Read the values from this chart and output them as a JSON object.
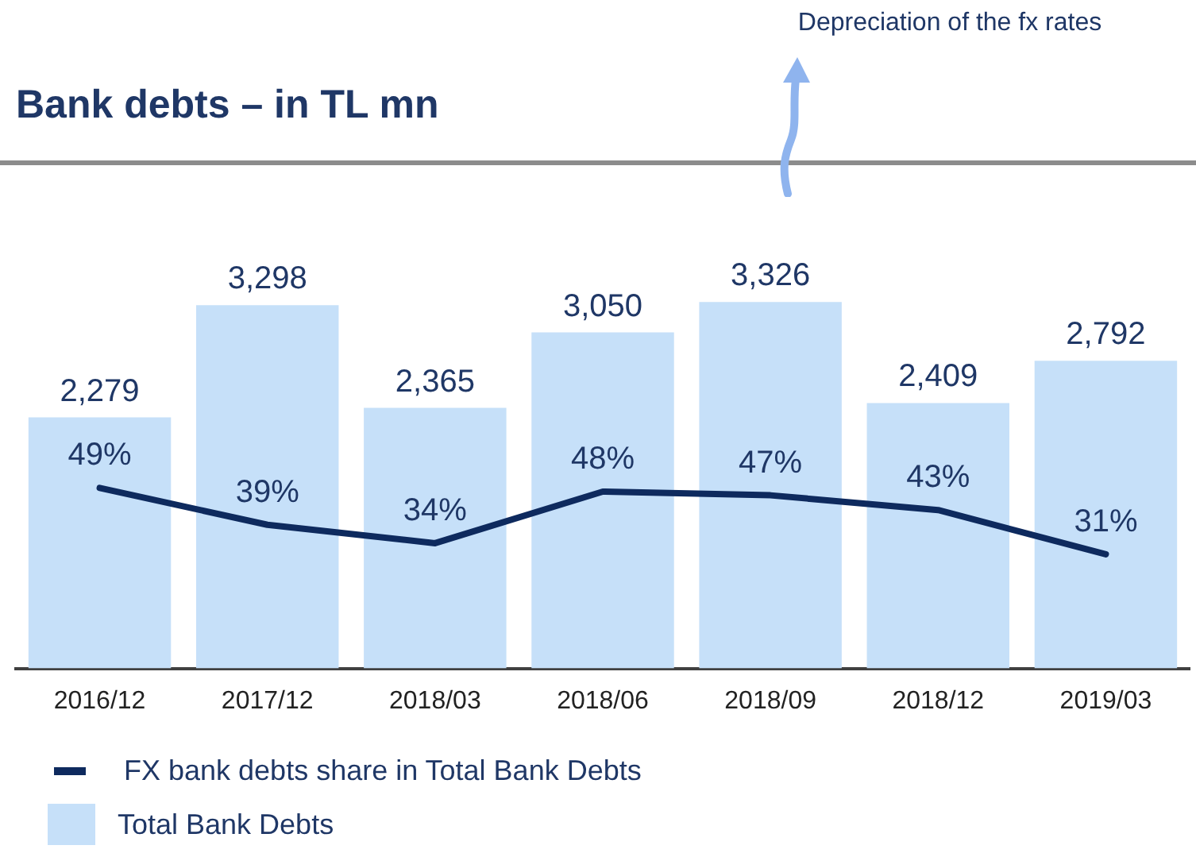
{
  "chart_data": {
    "type": "bar",
    "title": "Bank debts – in TL mn",
    "categories": [
      "2016/12",
      "2017/12",
      "2018/03",
      "2018/06",
      "2018/09",
      "2018/12",
      "2019/03"
    ],
    "series": [
      {
        "name": "FX bank debts share in Total Bank Debts",
        "type": "line",
        "axis": "y2",
        "color": "#0e2a5e",
        "values": [
          49,
          39,
          34,
          48,
          47,
          43,
          31
        ],
        "value_labels": [
          "49%",
          "39%",
          "34%",
          "48%",
          "47%",
          "43%",
          "31%"
        ]
      },
      {
        "name": "Total Bank Debts",
        "color": "#c6e0f9",
        "values": [
          2279,
          3298,
          2365,
          3050,
          3326,
          2409,
          2792
        ],
        "value_labels": [
          "2,279",
          "3,298",
          "2,365",
          "3,050",
          "3,326",
          "2,409",
          "2,792"
        ]
      }
    ],
    "annotations": [
      "Depreciation of the fx rates"
    ],
    "legend": "bottom left",
    "grid": false,
    "marker": "none",
    "line_style": "solid"
  }
}
